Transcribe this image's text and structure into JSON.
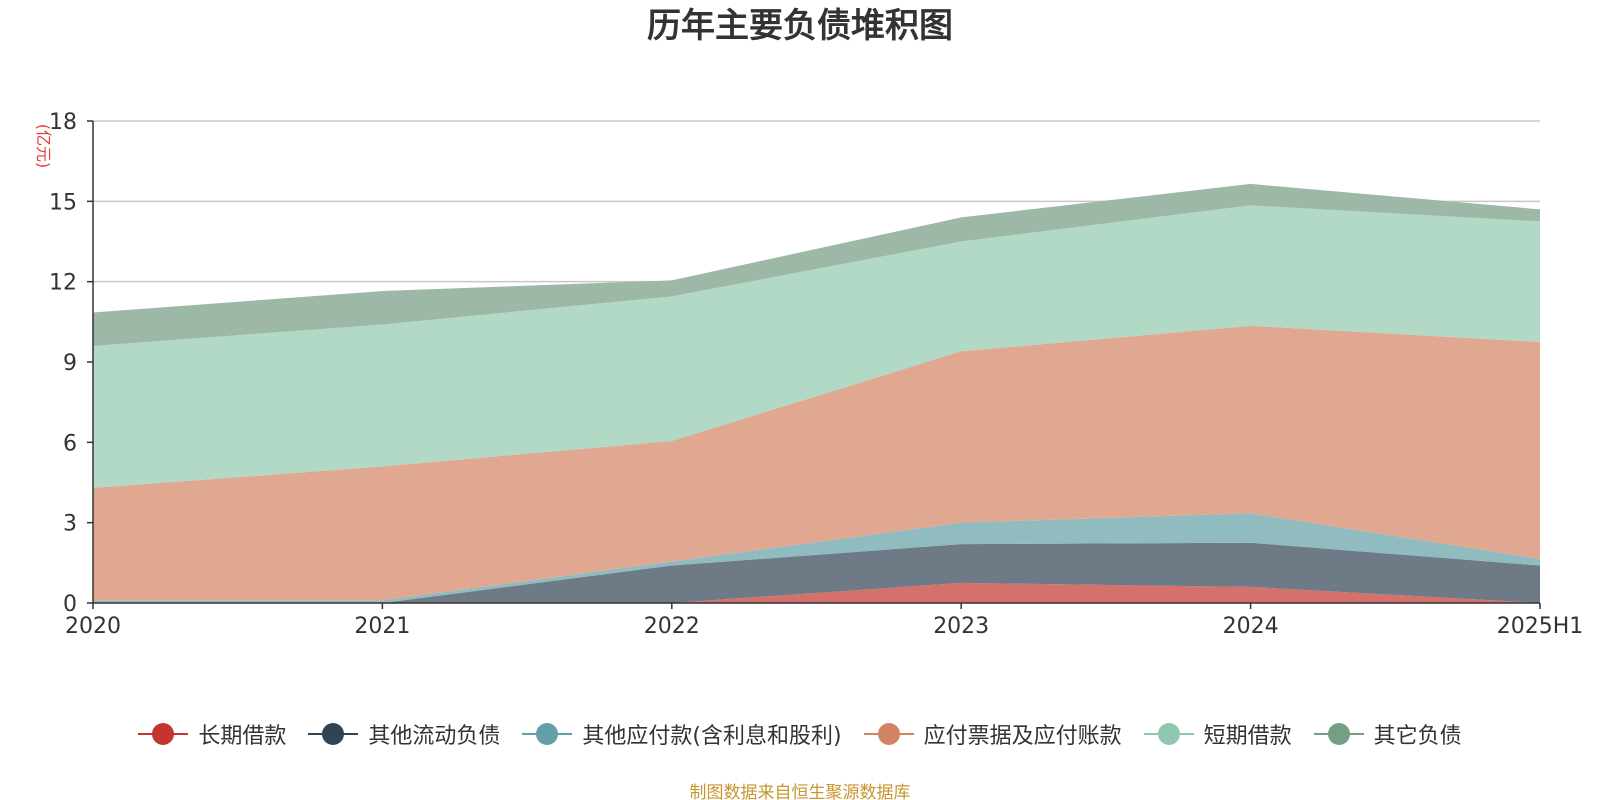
{
  "chart_data": {
    "type": "area",
    "stacked": true,
    "title": "历年主要负债堆积图",
    "ylabel": "(亿元)",
    "categories": [
      "2020",
      "2021",
      "2022",
      "2023",
      "2024",
      "2025H1"
    ],
    "ylim": [
      0,
      18
    ],
    "yticks": [
      0,
      3,
      6,
      9,
      12,
      15,
      18
    ],
    "grid": true,
    "legend_position": "bottom",
    "series": [
      {
        "name": "长期借款",
        "color": "#c23531",
        "fill": "#d4716c",
        "values": [
          0,
          0,
          0,
          0.75,
          0.6,
          0
        ]
      },
      {
        "name": "其他流动负债",
        "color": "#2f4554",
        "fill": "#6e7a85",
        "values": [
          0,
          0,
          1.4,
          1.45,
          1.65,
          1.4
        ]
      },
      {
        "name": "其他应付款(含利息和股利)",
        "color": "#61a0a8",
        "fill": "#90bbbf",
        "values": [
          0.1,
          0.1,
          0.15,
          0.8,
          1.1,
          0.25
        ]
      },
      {
        "name": "应付票据及应付账款",
        "color": "#d48265",
        "fill": "#e0a791",
        "values": [
          4.2,
          5.0,
          4.5,
          6.4,
          7.0,
          8.1
        ]
      },
      {
        "name": "短期借款",
        "color": "#91c7ae",
        "fill": "#b2d8c6",
        "values": [
          5.3,
          5.3,
          5.4,
          4.1,
          4.5,
          4.5
        ]
      },
      {
        "name": "其它负债",
        "color": "#749f83",
        "fill": "#9db8a6",
        "values": [
          1.25,
          1.25,
          0.6,
          0.9,
          0.8,
          0.45
        ]
      }
    ]
  },
  "source_note": "制图数据来自恒生聚源数据库"
}
